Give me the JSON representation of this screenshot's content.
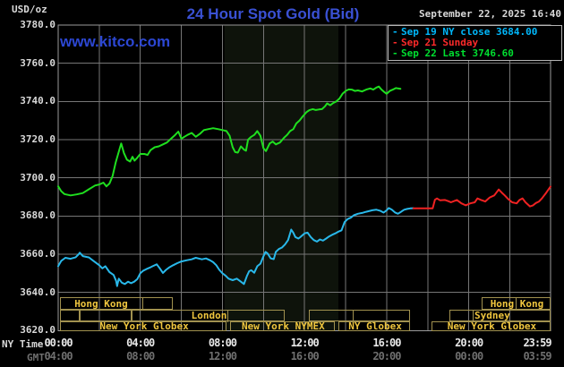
{
  "header": {
    "unit_label": "USD/oz",
    "title": "24 Hour Spot Gold (Bid)",
    "datetime": "September 22, 2025 16:40"
  },
  "watermark": "www.kitco.com",
  "legend": {
    "items": [
      {
        "marker": "-",
        "text": "Sep 19 NY close 3684.00",
        "color": "#00b8fc"
      },
      {
        "marker": "-",
        "text": "Sep 21 Sunday",
        "color": "#fc2a2a"
      },
      {
        "marker": "-",
        "text": "Sep 22 Last 3746.60",
        "color": "#00df30"
      }
    ]
  },
  "axes": {
    "y": {
      "tick_labels": [
        "3780.0",
        "3760.0",
        "3740.0",
        "3720.0",
        "3700.0",
        "3680.0",
        "3660.0",
        "3640.0",
        "3620.0"
      ],
      "max": 3780,
      "min": 3620,
      "step": 20
    },
    "x": {
      "ny_row_label": "NY Time",
      "gmt_row_label": "GMT",
      "ticks": [
        {
          "h": 0,
          "ny": "00:00",
          "gmt": "04:00"
        },
        {
          "h": 4,
          "ny": "04:00",
          "gmt": "08:00"
        },
        {
          "h": 8,
          "ny": "08:00",
          "gmt": "12:00"
        },
        {
          "h": 12,
          "ny": "12:00",
          "gmt": "16:00"
        },
        {
          "h": 16,
          "ny": "16:00",
          "gmt": "20:00"
        },
        {
          "h": 20,
          "ny": "20:00",
          "gmt": "00:00"
        },
        {
          "h": 23.983,
          "ny": "23:59",
          "gmt": "03:59"
        }
      ]
    }
  },
  "sessions": {
    "rows": [
      {
        "boxes": [
          {
            "start": 0.09,
            "end": 5.58,
            "label": "Hong Kong",
            "label_at": 2.05,
            "dividers": [
              4.06
            ]
          },
          {
            "start": 20.63,
            "end": 23.98,
            "label": "Hong Kong",
            "dividers": [
              22.24
            ]
          }
        ]
      },
      {
        "boxes": [
          {
            "start": 0.09,
            "end": 1.05,
            "label": "",
            "dividers": []
          },
          {
            "start": 1.05,
            "end": 3.58,
            "label": "",
            "dividers": []
          },
          {
            "start": 3.58,
            "end": 11.03,
            "label": "London",
            "dividers": [
              8.2
            ]
          },
          {
            "start": 12.21,
            "end": 17.14,
            "label": "",
            "dividers": [
              14.3
            ]
          },
          {
            "start": 19.06,
            "end": 23.98,
            "label": "Sydney",
            "label_at": 21.1,
            "dividers": [
              20.15
            ]
          }
        ]
      },
      {
        "boxes": [
          {
            "start": 0.09,
            "end": 8.2,
            "label": "New York Globex",
            "dividers": []
          },
          {
            "start": 8.37,
            "end": 13.47,
            "label": "New York NYMEX",
            "dividers": []
          },
          {
            "start": 13.65,
            "end": 17.14,
            "label": "NY Globex",
            "dividers": []
          },
          {
            "start": 18.18,
            "end": 23.98,
            "label": "New York Globex",
            "dividers": []
          }
        ]
      }
    ]
  },
  "colors": {
    "background": "#000000",
    "grid": "#767676",
    "plot_border": "#9a9a9a",
    "title_blue": "#3a51d4",
    "watermark_blue": "#2c47d3",
    "axis_text": "#d9d9d9",
    "gmt_text": "#6f6f6f",
    "session_border": "#a1914f",
    "session_text": "#f0c63e",
    "legend_border": "#b4b4b4",
    "nymex_band": "#0e130b"
  },
  "chart_data": {
    "type": "line",
    "title": "24 Hour Spot Gold (Bid)",
    "xlabel": "NY Time (hours)",
    "ylabel": "USD/oz",
    "xlim": [
      0,
      23.983
    ],
    "ylim": [
      3620,
      3780
    ],
    "y_tick_step": 20,
    "x_grid_step_hours": 2,
    "grid": true,
    "legend_position": "top-right",
    "highlight_band": {
      "x1_hour": 8.1,
      "x2_hour": 13.65,
      "color": "#0e130b",
      "meaning": "New York NYMEX floor session"
    },
    "series": [
      {
        "name": "Sep 19 NY close 3684.00",
        "color": "#29b8ea",
        "points": [
          [
            0,
            3653.7
          ],
          [
            0.15,
            3656.5
          ],
          [
            0.35,
            3658.1
          ],
          [
            0.6,
            3657.6
          ],
          [
            0.85,
            3658.4
          ],
          [
            1.0,
            3660
          ],
          [
            1.05,
            3660.8
          ],
          [
            1.2,
            3659
          ],
          [
            1.5,
            3658.3
          ],
          [
            1.7,
            3656.6
          ],
          [
            2.0,
            3654.2
          ],
          [
            2.15,
            3652.6
          ],
          [
            2.3,
            3653.7
          ],
          [
            2.5,
            3650.6
          ],
          [
            2.7,
            3649.1
          ],
          [
            2.82,
            3646
          ],
          [
            2.87,
            3643.3
          ],
          [
            2.95,
            3647.2
          ],
          [
            3.1,
            3645.1
          ],
          [
            3.25,
            3644.4
          ],
          [
            3.4,
            3645.6
          ],
          [
            3.55,
            3644.8
          ],
          [
            3.7,
            3645.6
          ],
          [
            3.85,
            3646.9
          ],
          [
            4.0,
            3650
          ],
          [
            4.15,
            3651.4
          ],
          [
            4.3,
            3652.2
          ],
          [
            4.45,
            3652.9
          ],
          [
            4.6,
            3653.7
          ],
          [
            4.8,
            3654.7
          ],
          [
            4.95,
            3652.6
          ],
          [
            5.1,
            3650.2
          ],
          [
            5.25,
            3651.8
          ],
          [
            5.4,
            3653
          ],
          [
            5.6,
            3654.2
          ],
          [
            5.8,
            3655.3
          ],
          [
            6.0,
            3656.2
          ],
          [
            6.25,
            3656.8
          ],
          [
            6.5,
            3657.3
          ],
          [
            6.7,
            3658.1
          ],
          [
            7.0,
            3657.3
          ],
          [
            7.2,
            3657.8
          ],
          [
            7.4,
            3656.8
          ],
          [
            7.55,
            3655.8
          ],
          [
            7.7,
            3654.2
          ],
          [
            7.85,
            3651.8
          ],
          [
            8.0,
            3650
          ],
          [
            8.15,
            3648.8
          ],
          [
            8.3,
            3647.2
          ],
          [
            8.5,
            3646.4
          ],
          [
            8.7,
            3647.2
          ],
          [
            8.9,
            3645.6
          ],
          [
            9.05,
            3644.4
          ],
          [
            9.2,
            3648.8
          ],
          [
            9.3,
            3651.1
          ],
          [
            9.4,
            3651.6
          ],
          [
            9.55,
            3650.3
          ],
          [
            9.7,
            3653.7
          ],
          [
            9.85,
            3655
          ],
          [
            10.0,
            3658.9
          ],
          [
            10.1,
            3661.2
          ],
          [
            10.2,
            3660.4
          ],
          [
            10.35,
            3657.8
          ],
          [
            10.5,
            3657.4
          ],
          [
            10.6,
            3661.2
          ],
          [
            10.75,
            3662.7
          ],
          [
            10.9,
            3663.5
          ],
          [
            11.05,
            3665.1
          ],
          [
            11.2,
            3667.4
          ],
          [
            11.35,
            3672.9
          ],
          [
            11.45,
            3671.3
          ],
          [
            11.55,
            3669
          ],
          [
            11.7,
            3668.2
          ],
          [
            11.8,
            3669
          ],
          [
            12.0,
            3670.9
          ],
          [
            12.15,
            3671.3
          ],
          [
            12.3,
            3669
          ],
          [
            12.45,
            3667.4
          ],
          [
            12.6,
            3666.6
          ],
          [
            12.75,
            3667.7
          ],
          [
            12.9,
            3667.1
          ],
          [
            13.05,
            3668.2
          ],
          [
            13.2,
            3669.3
          ],
          [
            13.35,
            3670.2
          ],
          [
            13.5,
            3670.9
          ],
          [
            13.65,
            3671.8
          ],
          [
            13.8,
            3672.5
          ],
          [
            13.95,
            3676.8
          ],
          [
            14.1,
            3678.4
          ],
          [
            14.25,
            3679.1
          ],
          [
            14.4,
            3680.4
          ],
          [
            14.6,
            3681.2
          ],
          [
            14.8,
            3681.6
          ],
          [
            15.0,
            3682.2
          ],
          [
            15.3,
            3683
          ],
          [
            15.5,
            3683.3
          ],
          [
            15.7,
            3682.7
          ],
          [
            15.85,
            3681.8
          ],
          [
            16.0,
            3683
          ],
          [
            16.1,
            3684.2
          ],
          [
            16.25,
            3683.3
          ],
          [
            16.4,
            3681.9
          ],
          [
            16.55,
            3681.2
          ],
          [
            16.7,
            3682.2
          ],
          [
            16.85,
            3683.3
          ],
          [
            17.0,
            3683.7
          ],
          [
            17.15,
            3684
          ],
          [
            17.3,
            3684.1
          ]
        ]
      },
      {
        "name": "Sep 21 Sunday",
        "color": "#ef2222",
        "points": [
          [
            17.3,
            3684
          ],
          [
            17.8,
            3684
          ],
          [
            18.24,
            3684
          ],
          [
            18.35,
            3688.5
          ],
          [
            18.45,
            3689.2
          ],
          [
            18.6,
            3688.2
          ],
          [
            18.84,
            3688.4
          ],
          [
            19.0,
            3687.8
          ],
          [
            19.13,
            3687.2
          ],
          [
            19.42,
            3688.4
          ],
          [
            19.64,
            3686.6
          ],
          [
            19.85,
            3685.6
          ],
          [
            20.07,
            3686.6
          ],
          [
            20.29,
            3687.2
          ],
          [
            20.42,
            3689.2
          ],
          [
            20.6,
            3688.4
          ],
          [
            20.8,
            3687.6
          ],
          [
            21.02,
            3689.7
          ],
          [
            21.24,
            3690.8
          ],
          [
            21.46,
            3693.9
          ],
          [
            21.6,
            3692.3
          ],
          [
            21.75,
            3690.8
          ],
          [
            21.89,
            3689.2
          ],
          [
            22.11,
            3687.2
          ],
          [
            22.33,
            3686.6
          ],
          [
            22.47,
            3688.4
          ],
          [
            22.62,
            3689.2
          ],
          [
            22.76,
            3687.2
          ],
          [
            22.98,
            3685
          ],
          [
            23.13,
            3685.6
          ],
          [
            23.27,
            3686.8
          ],
          [
            23.42,
            3687.6
          ],
          [
            23.56,
            3689.2
          ],
          [
            23.78,
            3692.3
          ],
          [
            23.98,
            3695.4
          ]
        ]
      },
      {
        "name": "Sep 22 Last 3746.60",
        "color": "#1fdf1f",
        "points": [
          [
            0,
            3695.5
          ],
          [
            0.15,
            3693
          ],
          [
            0.3,
            3691.5
          ],
          [
            0.6,
            3690.8
          ],
          [
            0.9,
            3691.3
          ],
          [
            1.2,
            3692
          ],
          [
            1.5,
            3694
          ],
          [
            1.8,
            3696
          ],
          [
            2.0,
            3696.5
          ],
          [
            2.2,
            3697.5
          ],
          [
            2.35,
            3695.5
          ],
          [
            2.5,
            3697
          ],
          [
            2.65,
            3701
          ],
          [
            2.8,
            3708
          ],
          [
            3.0,
            3715.5
          ],
          [
            3.07,
            3718
          ],
          [
            3.2,
            3713
          ],
          [
            3.35,
            3709.5
          ],
          [
            3.5,
            3708.5
          ],
          [
            3.62,
            3711
          ],
          [
            3.72,
            3709
          ],
          [
            3.85,
            3710.5
          ],
          [
            4.0,
            3712.5
          ],
          [
            4.2,
            3712.5
          ],
          [
            4.35,
            3712
          ],
          [
            4.5,
            3714.5
          ],
          [
            4.7,
            3716
          ],
          [
            4.9,
            3716.5
          ],
          [
            5.1,
            3717.5
          ],
          [
            5.3,
            3718.5
          ],
          [
            5.5,
            3720.5
          ],
          [
            5.7,
            3722.5
          ],
          [
            5.85,
            3724.2
          ],
          [
            6.0,
            3720.5
          ],
          [
            6.15,
            3721.5
          ],
          [
            6.3,
            3722.5
          ],
          [
            6.5,
            3723.5
          ],
          [
            6.7,
            3721.5
          ],
          [
            6.9,
            3723
          ],
          [
            7.1,
            3725
          ],
          [
            7.3,
            3725.5
          ],
          [
            7.55,
            3726
          ],
          [
            7.8,
            3725.5
          ],
          [
            8.0,
            3725
          ],
          [
            8.2,
            3724.5
          ],
          [
            8.35,
            3722
          ],
          [
            8.5,
            3716
          ],
          [
            8.62,
            3713.5
          ],
          [
            8.75,
            3713.2
          ],
          [
            8.9,
            3716.5
          ],
          [
            9.05,
            3714.8
          ],
          [
            9.15,
            3714.2
          ],
          [
            9.25,
            3720
          ],
          [
            9.4,
            3721.5
          ],
          [
            9.55,
            3722.5
          ],
          [
            9.7,
            3724.5
          ],
          [
            9.85,
            3722
          ],
          [
            10.0,
            3715.5
          ],
          [
            10.12,
            3714
          ],
          [
            10.3,
            3718
          ],
          [
            10.45,
            3719
          ],
          [
            10.6,
            3717.5
          ],
          [
            10.8,
            3718.5
          ],
          [
            11.0,
            3721
          ],
          [
            11.15,
            3722.5
          ],
          [
            11.3,
            3724.5
          ],
          [
            11.45,
            3725.5
          ],
          [
            11.6,
            3728.5
          ],
          [
            11.75,
            3730
          ],
          [
            11.9,
            3732
          ],
          [
            12.1,
            3734.5
          ],
          [
            12.25,
            3735.5
          ],
          [
            12.4,
            3736
          ],
          [
            12.55,
            3735.5
          ],
          [
            12.7,
            3735.8
          ],
          [
            12.85,
            3736
          ],
          [
            13.0,
            3737.5
          ],
          [
            13.1,
            3739
          ],
          [
            13.25,
            3738
          ],
          [
            13.4,
            3739.2
          ],
          [
            13.55,
            3740
          ],
          [
            13.7,
            3741.5
          ],
          [
            13.85,
            3744
          ],
          [
            14.0,
            3745.5
          ],
          [
            14.15,
            3746.3
          ],
          [
            14.3,
            3746.2
          ],
          [
            14.45,
            3745.5
          ],
          [
            14.6,
            3745.8
          ],
          [
            14.8,
            3745.2
          ],
          [
            15.0,
            3746.2
          ],
          [
            15.2,
            3746.8
          ],
          [
            15.35,
            3746.2
          ],
          [
            15.5,
            3747.3
          ],
          [
            15.62,
            3747.8
          ],
          [
            15.75,
            3746.2
          ],
          [
            15.9,
            3744.8
          ],
          [
            16.0,
            3744
          ],
          [
            16.15,
            3745.5
          ],
          [
            16.3,
            3746.2
          ],
          [
            16.45,
            3747
          ],
          [
            16.55,
            3746.8
          ],
          [
            16.67,
            3746.6
          ]
        ]
      }
    ]
  }
}
